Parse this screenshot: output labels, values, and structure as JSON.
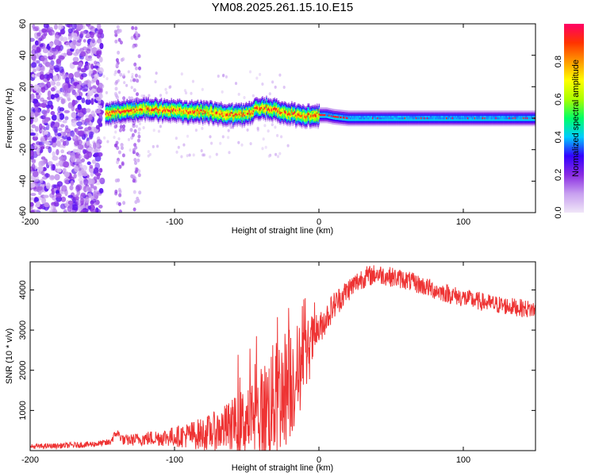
{
  "title": "YM08.2025.261.15.10.E15",
  "chart_data": [
    {
      "type": "heatmap",
      "name": "spectrogram",
      "xlabel": "Height of straight line (km)",
      "ylabel": "Frequency (Hz)",
      "xlim": [
        -200,
        150
      ],
      "ylim": [
        -60,
        60
      ],
      "xticks": [
        -200,
        -100,
        0,
        100
      ],
      "xtick_labels": [
        "-200",
        "-100",
        "0",
        "100"
      ],
      "yticks": [
        -60,
        -40,
        -20,
        0,
        20,
        40,
        60
      ],
      "ytick_labels": [
        "-60",
        "-40",
        "-20",
        "0",
        "20",
        "40",
        "60"
      ],
      "colorbar": {
        "label": "Normalized spectral amplitude",
        "range": [
          0,
          1
        ],
        "ticks": [
          0,
          0.2,
          0.4,
          0.6,
          0.8
        ],
        "tick_labels": [
          "0.0",
          "0.2",
          "0.4",
          "0.6",
          "0.8"
        ],
        "colormap": [
          "#f0e6f8",
          "#c8a0f0",
          "#8a2be2",
          "#3300ff",
          "#00ccff",
          "#00ff66",
          "#aaff00",
          "#ffff00",
          "#ff9900",
          "#ff3300",
          "#ff0066"
        ]
      },
      "ridge": {
        "description": "peak frequency track (Hz) vs height (km)",
        "x": [
          -148,
          -140,
          -130,
          -120,
          -110,
          -100,
          -90,
          -80,
          -70,
          -60,
          -55,
          -50,
          -45,
          -40,
          -35,
          -30,
          -25,
          -20,
          -15,
          -10,
          -5,
          0,
          5,
          10,
          20,
          40,
          60,
          80,
          100,
          120,
          150
        ],
        "y": [
          3,
          4,
          5,
          6,
          5,
          5,
          4,
          4,
          3,
          2,
          2,
          3,
          5,
          7,
          6,
          5,
          4,
          3,
          2,
          1,
          2,
          2,
          2,
          1,
          0,
          0,
          0,
          0,
          0,
          0,
          0
        ]
      },
      "noise_region_until_km": -150,
      "sparse_columns_km": [
        -138,
        -127
      ]
    },
    {
      "type": "line",
      "name": "snr",
      "xlabel": "Height of straight line (km)",
      "ylabel": "SNR (10 * v/v)",
      "xlim": [
        -200,
        150
      ],
      "ylim": [
        0,
        4700
      ],
      "xticks": [
        -200,
        -100,
        0,
        100
      ],
      "xtick_labels": [
        "-200",
        "-100",
        "0",
        "100"
      ],
      "yticks": [
        1000,
        2000,
        3000,
        4000
      ],
      "ytick_labels": [
        "1000",
        "2000",
        "3000",
        "4000"
      ],
      "color": "#ee3333",
      "trend": {
        "x": [
          -200,
          -180,
          -160,
          -145,
          -140,
          -135,
          -120,
          -100,
          -80,
          -60,
          -40,
          -30,
          -20,
          -10,
          -5,
          0,
          5,
          10,
          15,
          20,
          30,
          40,
          60,
          80,
          100,
          120,
          150
        ],
        "y": [
          100,
          120,
          150,
          200,
          450,
          250,
          300,
          350,
          420,
          600,
          900,
          1300,
          1700,
          2200,
          2700,
          3000,
          3300,
          3600,
          3800,
          4000,
          4300,
          4400,
          4250,
          4000,
          3800,
          3650,
          3500
        ]
      },
      "noise_amplitude": {
        "x": [
          -200,
          -150,
          -100,
          -70,
          -50,
          -30,
          -20,
          -10,
          0,
          20,
          40,
          150
        ],
        "y": [
          60,
          80,
          250,
          500,
          900,
          1500,
          1500,
          1000,
          400,
          300,
          250,
          220
        ]
      }
    }
  ]
}
